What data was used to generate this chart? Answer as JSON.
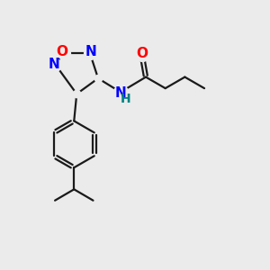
{
  "bg_color": "#ebebeb",
  "bond_color": "#1a1a1a",
  "N_color": "#0000ff",
  "O_color": "#ff0000",
  "NH_color": "#008080",
  "bond_width": 1.6,
  "font_size_atom": 11,
  "figsize": [
    3.0,
    3.0
  ],
  "dpi": 100,
  "xlim": [
    0,
    10
  ],
  "ylim": [
    0,
    10
  ]
}
